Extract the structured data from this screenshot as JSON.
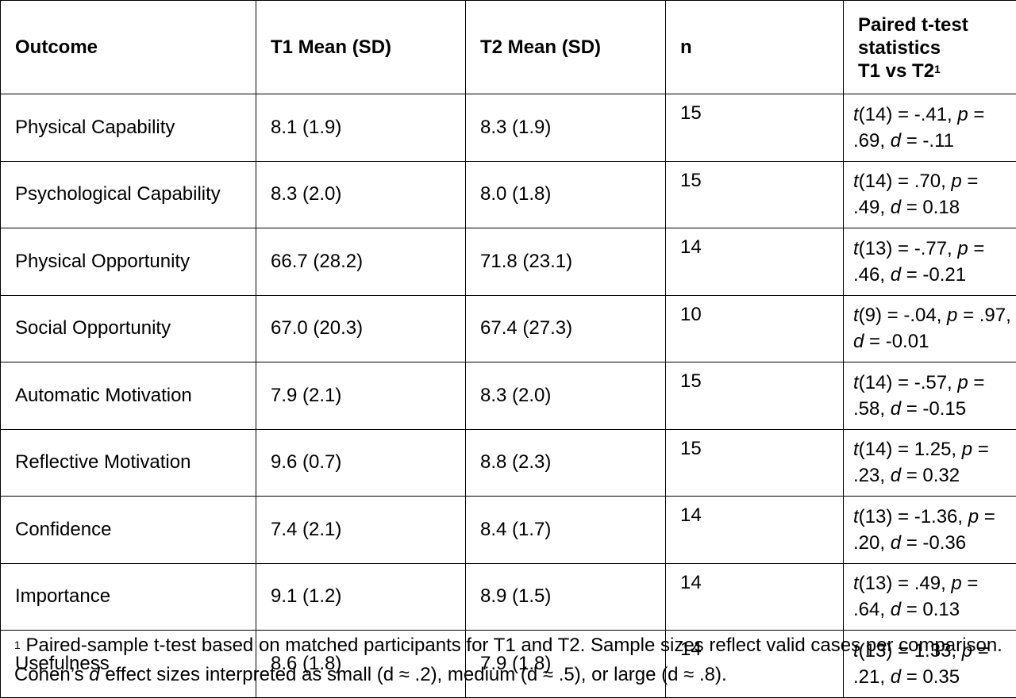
{
  "table": {
    "headers": {
      "outcome": "Outcome",
      "t1": "T1 Mean (SD)",
      "t2": "T2 Mean (SD)",
      "n": "n",
      "stat_line1": "Paired t-test",
      "stat_line2": "statistics",
      "stat_line3": "T1 vs T2",
      "stat_sup": "1"
    },
    "rows": [
      {
        "outcome": "Physical Capability",
        "t1": "8.1 (1.9)",
        "t2": "8.3 (1.9)",
        "n": "15",
        "df": "(14) = -.41, ",
        "p": " = ",
        "p_val": ".69, ",
        "d": " = -.11"
      },
      {
        "outcome": "Psychological Capability",
        "t1": "8.3 (2.0)",
        "t2": "8.0 (1.8)",
        "n": "15",
        "df": "(14) = .70, ",
        "p": " = ",
        "p_val": ".49, ",
        "d": " = 0.18"
      },
      {
        "outcome": "Physical Opportunity",
        "t1": "66.7 (28.2)",
        "t2": "71.8 (23.1)",
        "n": "14",
        "df": "(13) = -.77, ",
        "p": " = ",
        "p_val": ".46, ",
        "d": " = -0.21"
      },
      {
        "outcome": "Social Opportunity",
        "t1": "67.0 (20.3)",
        "t2": "67.4 (27.3)",
        "n": "10",
        "df": "(9) = -.04, ",
        "p": " = ",
        "p_val": ".97, ",
        "d": " = -0.01"
      },
      {
        "outcome": "Automatic Motivation",
        "t1": "7.9 (2.1)",
        "t2": "8.3 (2.0)",
        "n": "15",
        "df": "(14) = -.57, ",
        "p": " = ",
        "p_val": ".58, ",
        "d": " = -0.15"
      },
      {
        "outcome": "Reflective Motivation",
        "t1": "9.6 (0.7)",
        "t2": "8.8 (2.3)",
        "n": "15",
        "df": "(14) = 1.25, ",
        "p": "",
        "p_val": " = .23, ",
        "d": " = 0.32"
      },
      {
        "outcome": "Confidence",
        "t1": "7.4 (2.1)",
        "t2": "8.4 (1.7)",
        "n": "14",
        "df": "(13) = -1.36, ",
        "p": "",
        "p_val": " = .20, ",
        "d": " = -0.36"
      },
      {
        "outcome": "Importance",
        "t1": "9.1 (1.2)",
        "t2": "8.9 (1.5)",
        "n": "14",
        "df": "(13) = .49, ",
        "p": " = ",
        "p_val": ".64, ",
        "d": " = 0.13"
      },
      {
        "outcome": "Usefulness",
        "t1": "8.6 (1.8)",
        "t2": "7.9 (1.8)",
        "n": "14",
        "df": "(13) = 1.33, ",
        "p": "",
        "p_val": " = .21, ",
        "d": " = 0.35"
      }
    ]
  },
  "footnote": {
    "sup": "1",
    "text_part1": " Paired-sample t-test based on matched participants for T1 and T2. Sample sizes reflect valid cases per comparison. Cohen’s ",
    "d": "d",
    "text_part2": " effect sizes interpreted as small (d ≈ .2), medium (d ≈ .5), or large (d ≈ .8)."
  },
  "symbols": {
    "t": "t",
    "p": "p",
    "d": "d"
  }
}
